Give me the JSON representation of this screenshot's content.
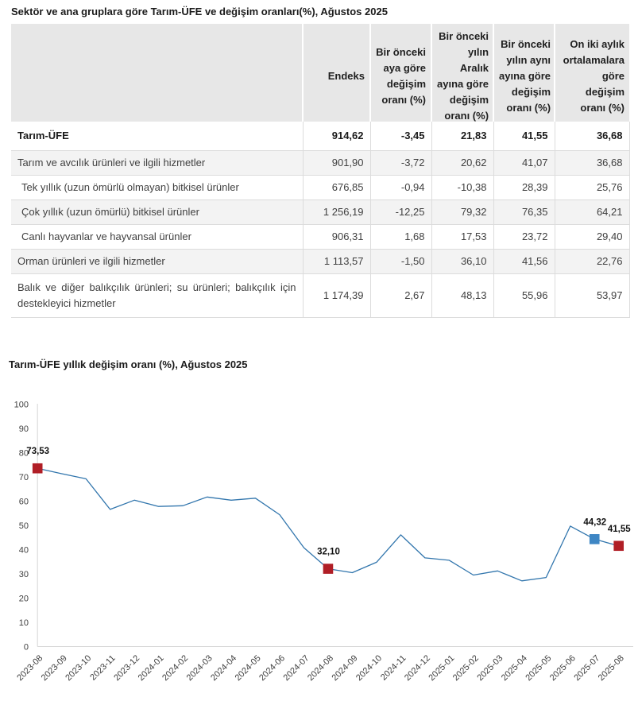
{
  "table_section": {
    "title": "Sektör ve ana gruplara göre Tarım-ÜFE ve değişim oranları(%), Ağustos 2025",
    "columns": [
      {
        "lines": [
          ""
        ]
      },
      {
        "lines": [
          "Endeks"
        ]
      },
      {
        "lines": [
          "Bir önceki",
          "aya göre",
          "değişim",
          "oranı (%)"
        ]
      },
      {
        "lines": [
          "Bir önceki",
          "yılın",
          "Aralık",
          "ayına göre",
          "değişim",
          "oranı (%)"
        ]
      },
      {
        "lines": [
          "Bir önceki",
          "yılın aynı",
          "ayına göre",
          "değişim",
          "oranı (%)"
        ]
      },
      {
        "lines": [
          "On iki aylık",
          "ortalamalara",
          "göre",
          "değişim",
          "oranı (%)"
        ]
      }
    ],
    "rows": [
      {
        "label": "Tarım-ÜFE",
        "bold": true,
        "indent": false,
        "values": [
          "914,62",
          "-3,45",
          "21,83",
          "41,55",
          "36,68"
        ]
      },
      {
        "label": "Tarım ve avcılık ürünleri ve ilgili hizmetler",
        "bold": false,
        "indent": false,
        "values": [
          "901,90",
          "-3,72",
          "20,62",
          "41,07",
          "36,68"
        ]
      },
      {
        "label": "Tek yıllık (uzun ömürlü olmayan) bitkisel ürünler",
        "bold": false,
        "indent": true,
        "values": [
          "676,85",
          "-0,94",
          "-10,38",
          "28,39",
          "25,76"
        ]
      },
      {
        "label": "Çok yıllık (uzun ömürlü) bitkisel ürünler",
        "bold": false,
        "indent": true,
        "values": [
          "1 256,19",
          "-12,25",
          "79,32",
          "76,35",
          "64,21"
        ]
      },
      {
        "label": "Canlı hayvanlar ve hayvansal ürünler",
        "bold": false,
        "indent": true,
        "values": [
          "906,31",
          "1,68",
          "17,53",
          "23,72",
          "29,40"
        ]
      },
      {
        "label": "Orman ürünleri ve ilgili hizmetler",
        "bold": false,
        "indent": false,
        "values": [
          "1 113,57",
          "-1,50",
          "36,10",
          "41,56",
          "22,76"
        ]
      },
      {
        "label": "Balık ve diğer balıkçılık ürünleri; su ürünleri; balıkçılık için destekleyici hizmetler",
        "bold": false,
        "indent": false,
        "justify": true,
        "values": [
          "1 174,39",
          "2,67",
          "48,13",
          "55,96",
          "53,97"
        ]
      }
    ]
  },
  "chart_section": {
    "title": "Tarım-ÜFE yıllık değişim oranı (%), Ağustos 2025"
  },
  "chart_data": {
    "type": "line",
    "title": "Tarım-ÜFE yıllık değişim oranı (%), Ağustos 2025",
    "x": [
      "2023-08",
      "2023-09",
      "2023-10",
      "2023-11",
      "2023-12",
      "2024-01",
      "2024-02",
      "2024-03",
      "2024-04",
      "2024-05",
      "2024-06",
      "2024-07",
      "2024-08",
      "2024-09",
      "2024-10",
      "2024-11",
      "2024-12",
      "2025-01",
      "2025-02",
      "2025-03",
      "2025-04",
      "2025-05",
      "2025-06",
      "2025-07",
      "2025-08"
    ],
    "values": [
      73.53,
      71.3,
      69.2,
      56.6,
      60.4,
      57.8,
      58.1,
      61.7,
      60.4,
      61.2,
      54.4,
      40.8,
      32.1,
      30.5,
      34.8,
      46.1,
      36.6,
      35.6,
      29.5,
      31.2,
      27.1,
      28.5,
      49.7,
      44.32,
      41.55
    ],
    "ylim": [
      0,
      100
    ],
    "ytick_step": 10,
    "grid": false,
    "legend": false,
    "line_color": "#3276ad",
    "annotations": [
      {
        "x": "2023-08",
        "label": "73,53",
        "marker": "square",
        "color": "#b01e26"
      },
      {
        "x": "2024-08",
        "label": "32,10",
        "marker": "square",
        "color": "#b01e26"
      },
      {
        "x": "2025-07",
        "label": "44,32",
        "marker": "square",
        "color": "#3e86c4"
      },
      {
        "x": "2025-08",
        "label": "41,55",
        "marker": "square",
        "color": "#b01e26"
      }
    ]
  }
}
